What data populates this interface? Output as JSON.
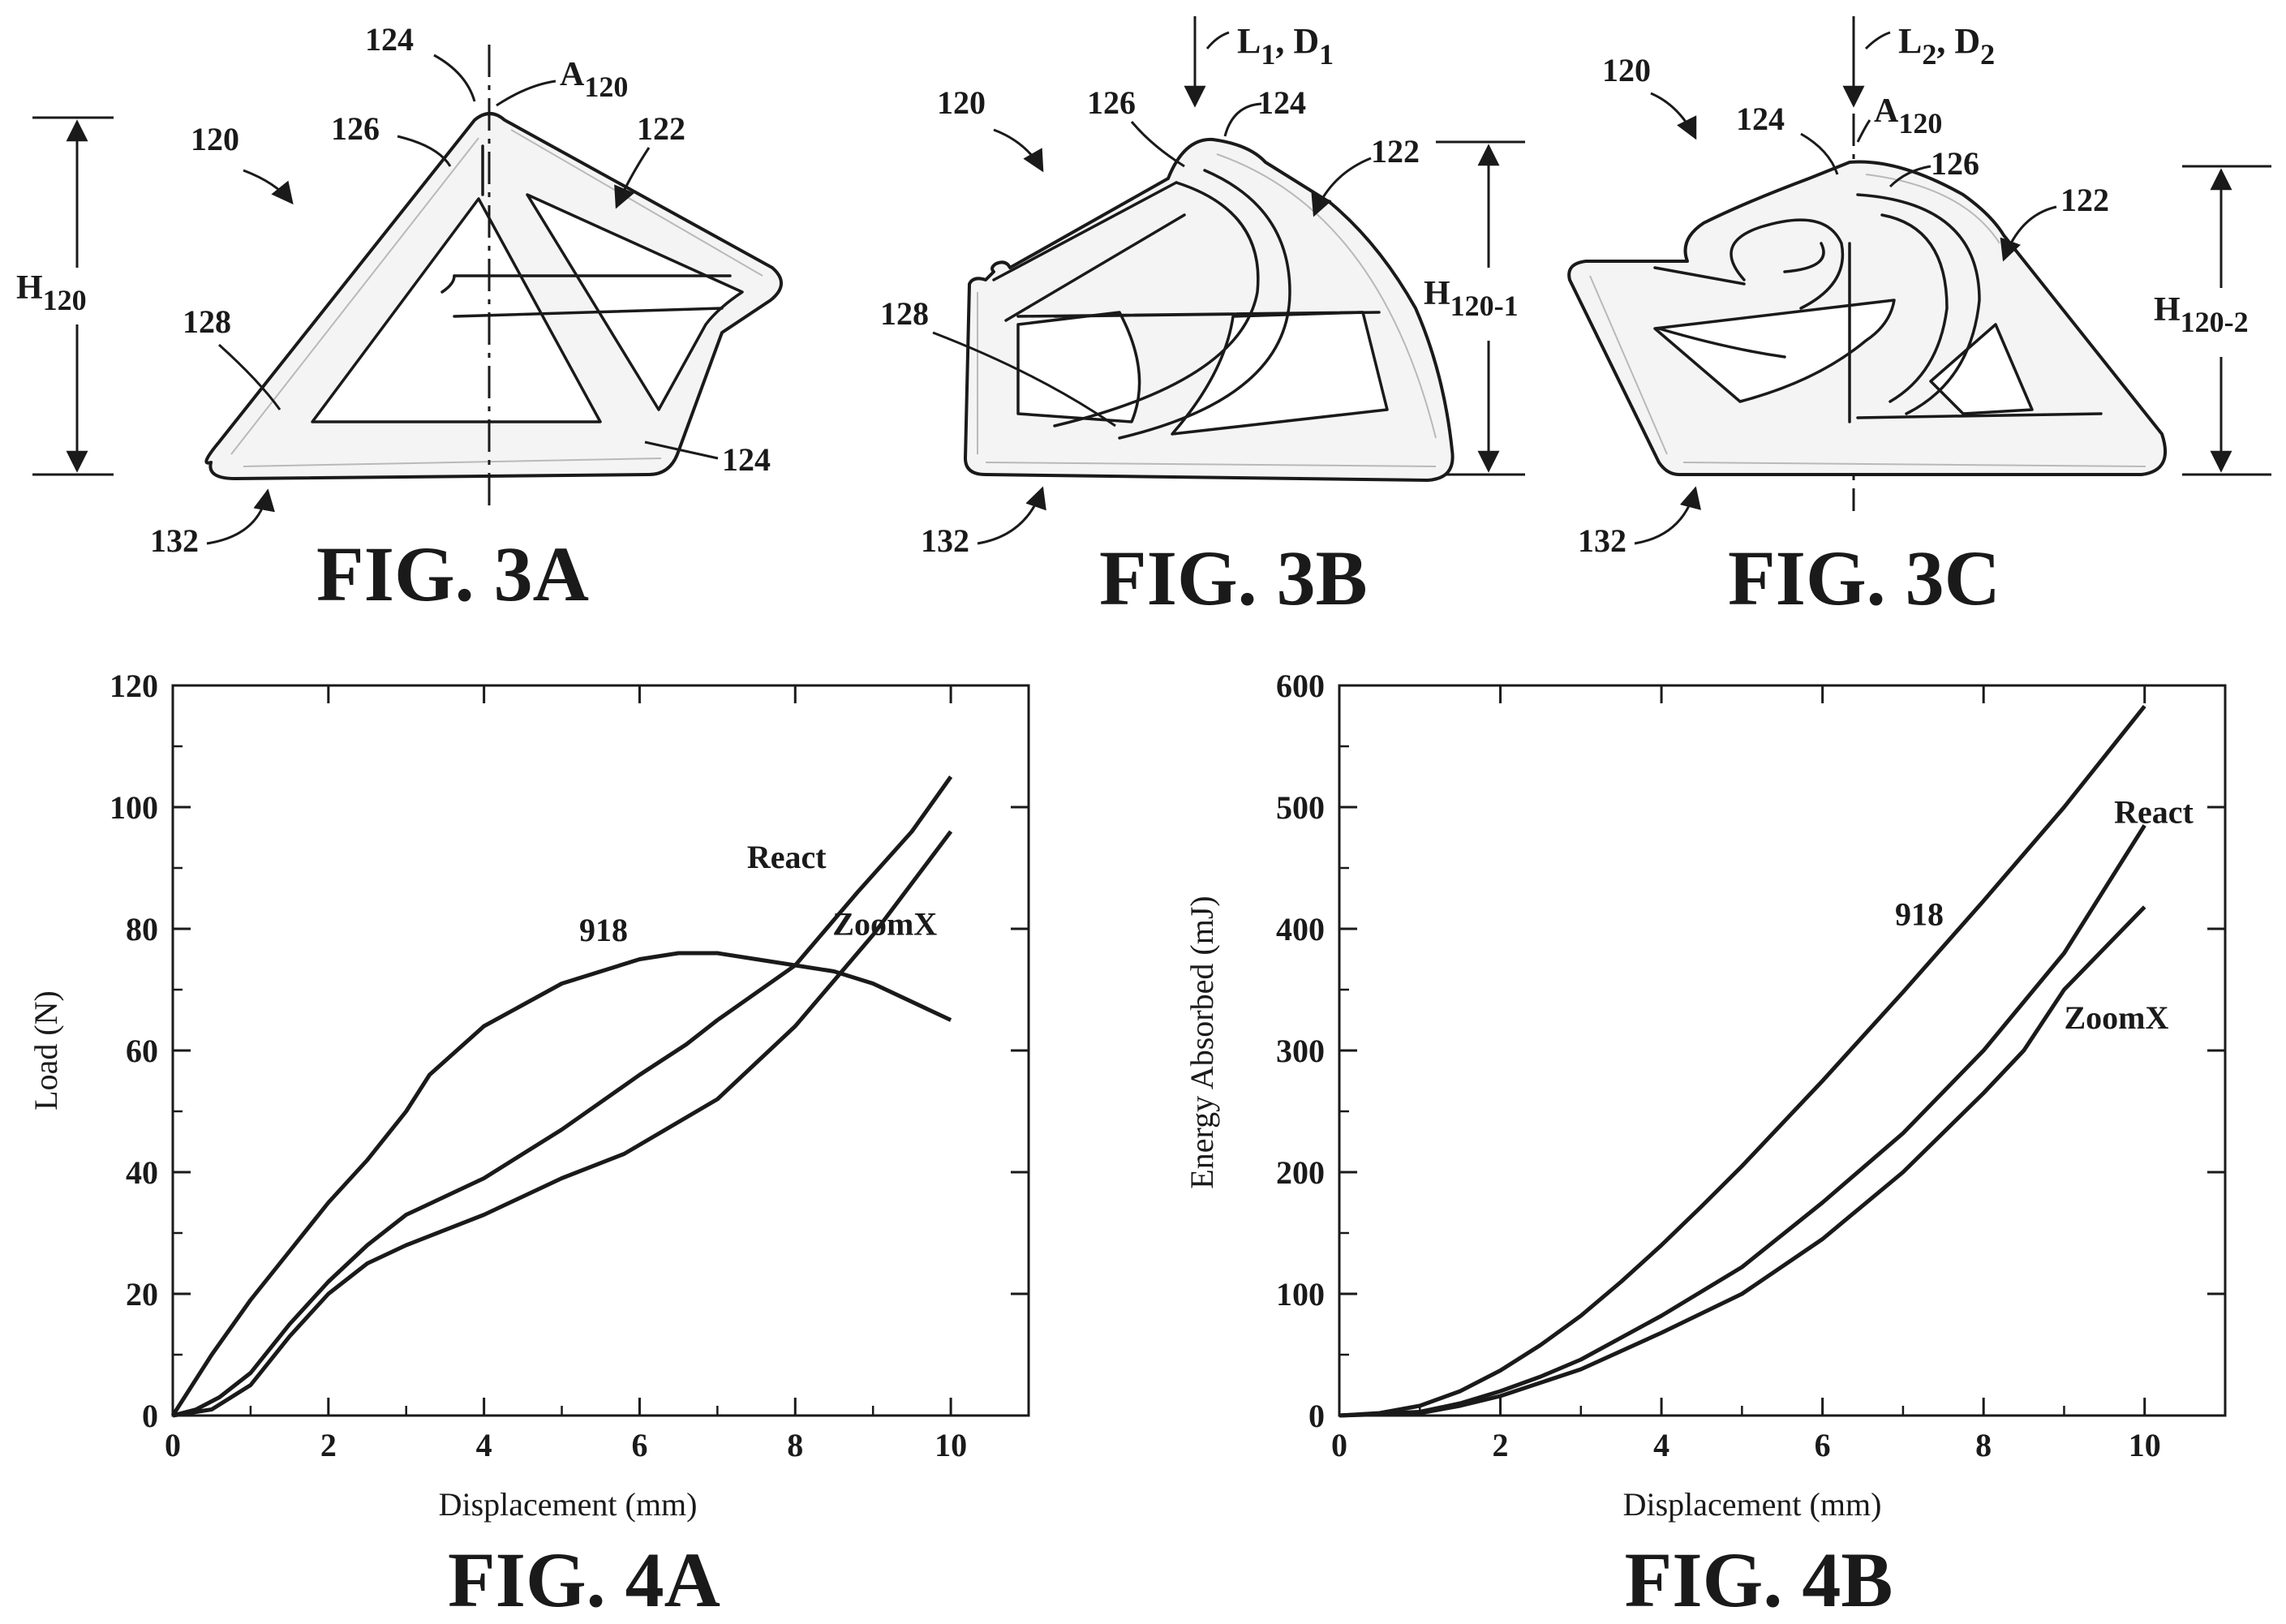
{
  "figures": {
    "fig3a": {
      "caption": "FIG. 3A",
      "refs": {
        "r120": "120",
        "r122": "122",
        "r124a": "124",
        "r124b": "124",
        "r126": "126",
        "r128": "128",
        "r132": "132"
      },
      "axis_label": {
        "main": "A",
        "sub": "120"
      },
      "height_label": {
        "main": "H",
        "sub": "120"
      }
    },
    "fig3b": {
      "caption": "FIG. 3B",
      "refs": {
        "r120": "120",
        "r122": "122",
        "r124": "124",
        "r126": "126",
        "r128": "128",
        "r132": "132"
      },
      "load_label": {
        "l": "L",
        "l_sub": "1",
        "sep": ", ",
        "d": "D",
        "d_sub": "1"
      },
      "height_label": {
        "main": "H",
        "sub": "120-1"
      }
    },
    "fig3c": {
      "caption": "FIG. 3C",
      "refs": {
        "r120": "120",
        "r122": "122",
        "r124": "124",
        "r126": "126",
        "r132": "132"
      },
      "axis_label": {
        "main": "A",
        "sub": "120"
      },
      "load_label": {
        "l": "L",
        "l_sub": "2",
        "sep": ", ",
        "d": "D",
        "d_sub": "2"
      },
      "height_label": {
        "main": "H",
        "sub": "120-2"
      }
    },
    "fig4a": {
      "caption": "FIG. 4A"
    },
    "fig4b": {
      "caption": "FIG. 4B"
    }
  },
  "chart_data": [
    {
      "type": "line",
      "figure": "FIG. 4A",
      "xlabel": "Displacement (mm)",
      "ylabel": "Load (N)",
      "xlim": [
        0,
        11
      ],
      "ylim": [
        0,
        120
      ],
      "xticks": [
        0,
        2,
        4,
        6,
        8,
        10
      ],
      "yticks": [
        0,
        20,
        40,
        60,
        80,
        100,
        120
      ],
      "grid": false,
      "series": [
        {
          "name": "918",
          "points": [
            [
              0,
              0
            ],
            [
              0.5,
              10
            ],
            [
              1,
              19
            ],
            [
              1.5,
              27
            ],
            [
              2,
              35
            ],
            [
              2.5,
              42
            ],
            [
              3,
              50
            ],
            [
              3.3,
              56
            ],
            [
              4,
              64
            ],
            [
              5,
              71
            ],
            [
              6,
              75
            ],
            [
              6.5,
              76
            ],
            [
              7,
              76
            ],
            [
              7.5,
              75
            ],
            [
              8,
              74
            ],
            [
              8.5,
              73
            ],
            [
              9,
              71
            ],
            [
              10,
              65
            ]
          ]
        },
        {
          "name": "React",
          "points": [
            [
              0,
              0
            ],
            [
              0.3,
              1
            ],
            [
              0.6,
              3
            ],
            [
              1,
              7
            ],
            [
              1.5,
              15
            ],
            [
              2,
              22
            ],
            [
              2.5,
              28
            ],
            [
              3,
              33
            ],
            [
              3.5,
              36
            ],
            [
              4,
              39
            ],
            [
              5,
              47
            ],
            [
              6,
              56
            ],
            [
              6.6,
              61
            ],
            [
              7,
              65
            ],
            [
              8,
              74
            ],
            [
              8.8,
              86
            ],
            [
              9.5,
              96
            ],
            [
              10,
              105
            ]
          ]
        },
        {
          "name": "ZoomX",
          "points": [
            [
              0,
              0
            ],
            [
              0.5,
              1
            ],
            [
              1,
              5
            ],
            [
              1.5,
              13
            ],
            [
              2,
              20
            ],
            [
              2.5,
              25
            ],
            [
              3,
              28
            ],
            [
              4,
              33
            ],
            [
              5,
              39
            ],
            [
              5.8,
              43
            ],
            [
              7,
              52
            ],
            [
              8,
              64
            ],
            [
              9,
              79
            ],
            [
              10,
              96
            ]
          ]
        }
      ],
      "annotations": [
        "918",
        "React",
        "ZoomX"
      ]
    },
    {
      "type": "line",
      "figure": "FIG. 4B",
      "xlabel": "Displacement (mm)",
      "ylabel": "Energy Absorbed (mJ)",
      "xlim": [
        0,
        11
      ],
      "ylim": [
        0,
        600
      ],
      "xticks": [
        0,
        2,
        4,
        6,
        8,
        10
      ],
      "yticks": [
        0,
        100,
        200,
        300,
        400,
        500,
        600
      ],
      "grid": false,
      "series": [
        {
          "name": "918",
          "points": [
            [
              0,
              0
            ],
            [
              0.5,
              2
            ],
            [
              1,
              8
            ],
            [
              1.5,
              20
            ],
            [
              2,
              37
            ],
            [
              2.5,
              58
            ],
            [
              3,
              82
            ],
            [
              3.5,
              110
            ],
            [
              4,
              140
            ],
            [
              4.5,
              172
            ],
            [
              5,
              205
            ],
            [
              6,
              275
            ],
            [
              7,
              348
            ],
            [
              8,
              423
            ],
            [
              9,
              500
            ],
            [
              10,
              583
            ]
          ]
        },
        {
          "name": "React",
          "points": [
            [
              0,
              0
            ],
            [
              1,
              3
            ],
            [
              1.5,
              10
            ],
            [
              2,
              20
            ],
            [
              2.5,
              32
            ],
            [
              3,
              46
            ],
            [
              4,
              82
            ],
            [
              5,
              122
            ],
            [
              6,
              175
            ],
            [
              7,
              232
            ],
            [
              8,
              300
            ],
            [
              9,
              380
            ],
            [
              10,
              485
            ]
          ]
        },
        {
          "name": "ZoomX",
          "points": [
            [
              0,
              0
            ],
            [
              1,
              2
            ],
            [
              1.5,
              8
            ],
            [
              2,
              16
            ],
            [
              3,
              38
            ],
            [
              4,
              68
            ],
            [
              5,
              100
            ],
            [
              6,
              145
            ],
            [
              7,
              200
            ],
            [
              8,
              265
            ],
            [
              8.5,
              300
            ],
            [
              9,
              350
            ],
            [
              10,
              418
            ]
          ]
        }
      ],
      "annotations": [
        "918",
        "React",
        "ZoomX"
      ]
    }
  ]
}
